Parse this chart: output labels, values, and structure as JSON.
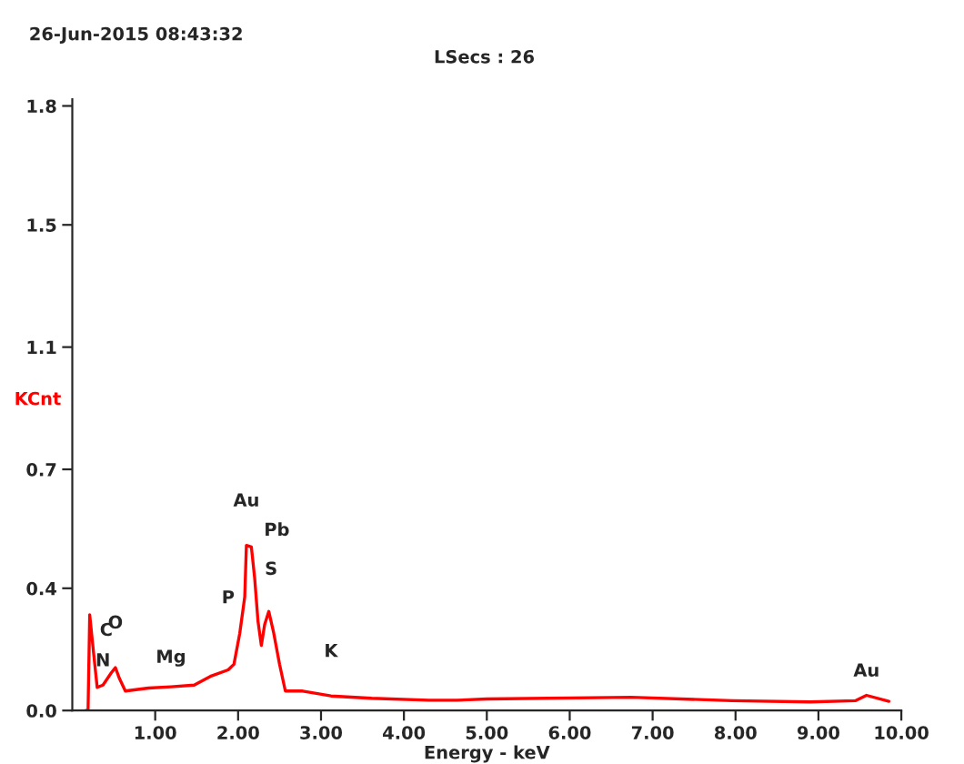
{
  "chart_data": {
    "type": "line",
    "title": "26-Jun-2015 08:43:32",
    "subtitle": "LSecs : 26",
    "xlabel": "Energy - keV",
    "ylabel": "KCnt",
    "x": [
      0.16,
      0.19,
      0.21,
      0.24,
      0.3,
      0.37,
      0.47,
      0.52,
      0.57,
      0.64,
      0.92,
      1.19,
      1.47,
      1.68,
      1.88,
      1.95,
      2.02,
      2.08,
      2.1,
      2.16,
      2.2,
      2.24,
      2.28,
      2.32,
      2.37,
      2.43,
      2.5,
      2.57,
      2.78,
      3.12,
      3.61,
      4.3,
      4.64,
      5.0,
      6.74,
      7.96,
      8.9,
      9.45,
      9.58,
      9.85
    ],
    "series": [
      {
        "color": "#ff0000",
        "values": [
          0,
          0,
          0.29,
          0.215,
          0.07,
          0.077,
          0.114,
          0.13,
          0.096,
          0.059,
          0.068,
          0.072,
          0.077,
          0.105,
          0.123,
          0.14,
          0.234,
          0.344,
          0.5,
          0.495,
          0.4,
          0.27,
          0.197,
          0.26,
          0.3,
          0.234,
          0.14,
          0.059,
          0.059,
          0.044,
          0.037,
          0.031,
          0.031,
          0.035,
          0.04,
          0.03,
          0.026,
          0.03,
          0.046,
          0.028
        ]
      }
    ],
    "xlim": [
      0,
      10
    ],
    "xticks": [
      {
        "value": 1,
        "label": "1.00"
      },
      {
        "value": 2,
        "label": "2.00"
      },
      {
        "value": 3,
        "label": "3.00"
      },
      {
        "value": 4,
        "label": "4.00"
      },
      {
        "value": 5,
        "label": "5.00"
      },
      {
        "value": 6,
        "label": "6.00"
      },
      {
        "value": 7,
        "label": "7.00"
      },
      {
        "value": 8,
        "label": "8.00"
      },
      {
        "value": 9,
        "label": "9.00"
      },
      {
        "value": 10,
        "label": "10.00"
      }
    ],
    "ylim": [
      0,
      1.85
    ],
    "yticks": [
      {
        "value": 0,
        "label": "0.0"
      },
      {
        "value": 0.37,
        "label": "0.4"
      },
      {
        "value": 0.73,
        "label": "0.7"
      },
      {
        "value": 1.1,
        "label": "1.1"
      },
      {
        "value": 1.47,
        "label": "1.5"
      },
      {
        "value": 1.83,
        "label": "1.8"
      }
    ],
    "annotations": [
      {
        "text": "C",
        "x": 0.24,
        "y": 0.215
      },
      {
        "text": "N",
        "x": 0.37,
        "y": 0.077
      },
      {
        "text": "O",
        "x": 0.52,
        "y": 0.13
      },
      {
        "text": "Mg",
        "x": 1.19,
        "y": 0.072
      },
      {
        "text": "P",
        "x": 2.08,
        "y": 0.344
      },
      {
        "text": "Au",
        "x": 2.1,
        "y": 0.5
      },
      {
        "text": "Pb",
        "x": 2.16,
        "y": 0.495
      },
      {
        "text": "S",
        "x": 2.2,
        "y": 0.4
      },
      {
        "text": "K",
        "x": 3.12,
        "y": 0.044
      },
      {
        "text": "Au",
        "x": 9.58,
        "y": 0.046
      }
    ],
    "grid": false,
    "marker": "none",
    "line_style": "solid"
  }
}
